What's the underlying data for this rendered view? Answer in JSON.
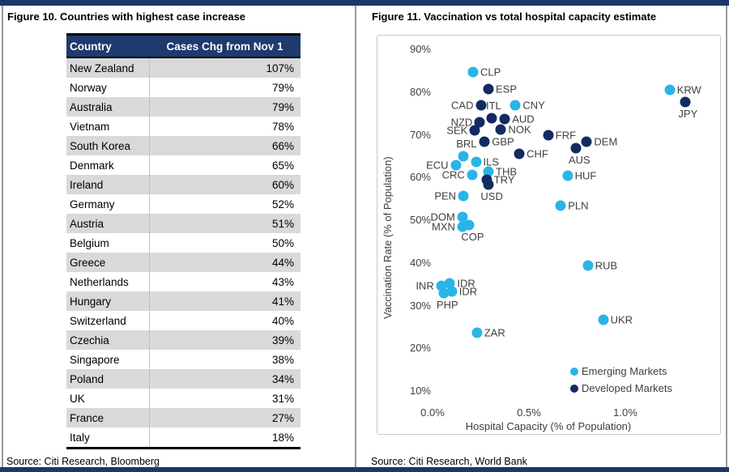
{
  "colors": {
    "bar_navy": "#1f3767",
    "table_header_navy": "#1e3a6e",
    "emerging": "#29b4e8",
    "developed": "#132a63",
    "row_alt_gray": "#d9d9d9"
  },
  "figure10": {
    "title": "Figure 10. Countries with highest case increase",
    "source": "Source: Citi Research, Bloomberg",
    "table": {
      "columns": [
        "Country",
        "Cases Chg from Nov 1"
      ],
      "rows": [
        [
          "New Zealand",
          "107%"
        ],
        [
          "Norway",
          "79%"
        ],
        [
          "Australia",
          "79%"
        ],
        [
          "Vietnam",
          "78%"
        ],
        [
          "South Korea",
          "66%"
        ],
        [
          "Denmark",
          "65%"
        ],
        [
          "Ireland",
          "60%"
        ],
        [
          "Germany",
          "52%"
        ],
        [
          "Austria",
          "51%"
        ],
        [
          "Belgium",
          "50%"
        ],
        [
          "Greece",
          "44%"
        ],
        [
          "Netherlands",
          "43%"
        ],
        [
          "Hungary",
          "41%"
        ],
        [
          "Switzerland",
          "40%"
        ],
        [
          "Czechia",
          "39%"
        ],
        [
          "Singapore",
          "38%"
        ],
        [
          "Poland",
          "34%"
        ],
        [
          "UK",
          "31%"
        ],
        [
          "France",
          "27%"
        ],
        [
          "Italy",
          "18%"
        ]
      ]
    }
  },
  "figure11": {
    "title": "Figure 11. Vaccination vs total hospital capacity estimate",
    "source": "Source: Citi Research, World Bank",
    "chart_data": {
      "type": "scatter",
      "xlabel": "Hospital Capacity (% of Population)",
      "ylabel": "Vaccination Rate (% of Population)",
      "x_ticks": [
        "0.0%",
        "0.5%",
        "1.0%"
      ],
      "y_ticks": [
        "90%",
        "80%",
        "70%",
        "60%",
        "50%",
        "40%",
        "30%",
        "20%",
        "10%"
      ],
      "xlim": [
        0.0,
        1.0
      ],
      "ylim": [
        10,
        90
      ],
      "grid": false,
      "legend_position": "lower right",
      "legend": [
        {
          "name": "Emerging Markets",
          "color": "#29b4e8"
        },
        {
          "name": "Developed Markets",
          "color": "#132a63"
        }
      ],
      "series": [
        {
          "name": "Emerging Markets",
          "color": "#29b4e8",
          "points": [
            {
              "label": "CLP",
              "x": 0.21,
              "y": 84.6,
              "side": "right"
            },
            {
              "label": "KRW",
              "x": 1.23,
              "y": 80.5,
              "side": "right"
            },
            {
              "label": "CNY",
              "x": 0.43,
              "y": 77.0,
              "side": "right"
            },
            {
              "label": "BRL",
              "x": 0.16,
              "y": 64.9,
              "side": "above"
            },
            {
              "label": "ECU",
              "x": 0.12,
              "y": 62.9,
              "side": "left"
            },
            {
              "label": "ILS",
              "x": 0.225,
              "y": 63.7,
              "side": "right"
            },
            {
              "label": "THB",
              "x": 0.29,
              "y": 61.3,
              "side": "right"
            },
            {
              "label": "CRC",
              "x": 0.205,
              "y": 60.7,
              "side": "left"
            },
            {
              "label": "PEN",
              "x": 0.16,
              "y": 55.6,
              "side": "left"
            },
            {
              "label": "HUF",
              "x": 0.7,
              "y": 60.4,
              "side": "right"
            },
            {
              "label": "PLN",
              "x": 0.665,
              "y": 53.5,
              "side": "right"
            },
            {
              "label": "DOM",
              "x": 0.155,
              "y": 50.8,
              "side": "left"
            },
            {
              "label": "MXN",
              "x": 0.155,
              "y": 48.4,
              "side": "left"
            },
            {
              "label": "COP",
              "x": 0.19,
              "y": 48.8,
              "side": "below"
            },
            {
              "label": "INR",
              "x": 0.045,
              "y": 34.6,
              "side": "left"
            },
            {
              "label": "IDR",
              "x": 0.09,
              "y": 35.3,
              "side": "right"
            },
            {
              "label": "IDR",
              "x": 0.1,
              "y": 33.4,
              "side": "right"
            },
            {
              "label": "PHP",
              "x": 0.06,
              "y": 33.0,
              "side": "below"
            },
            {
              "label": "RUB",
              "x": 0.805,
              "y": 39.3,
              "side": "right"
            },
            {
              "label": "UKR",
              "x": 0.885,
              "y": 26.6,
              "side": "right"
            },
            {
              "label": "ZAR",
              "x": 0.23,
              "y": 23.7,
              "side": "right"
            }
          ]
        },
        {
          "name": "Developed Markets",
          "color": "#132a63",
          "points": [
            {
              "label": "ESP",
              "x": 0.29,
              "y": 80.7,
              "side": "right"
            },
            {
              "label": "JPY",
              "x": 1.31,
              "y": 77.7,
              "side": "below"
            },
            {
              "label": "CAD",
              "x": 0.25,
              "y": 77.0,
              "side": "left"
            },
            {
              "label": "ITL",
              "x": 0.305,
              "y": 73.9,
              "side": "above"
            },
            {
              "label": "NZD",
              "x": 0.245,
              "y": 72.9,
              "side": "left"
            },
            {
              "label": "AUD",
              "x": 0.375,
              "y": 73.7,
              "side": "right"
            },
            {
              "label": "SEK",
              "x": 0.22,
              "y": 71.0,
              "side": "left"
            },
            {
              "label": "NOK",
              "x": 0.355,
              "y": 71.2,
              "side": "right"
            },
            {
              "label": "GBP",
              "x": 0.27,
              "y": 68.3,
              "side": "right"
            },
            {
              "label": "FRF",
              "x": 0.6,
              "y": 69.9,
              "side": "right"
            },
            {
              "label": "DEM",
              "x": 0.8,
              "y": 68.3,
              "side": "right"
            },
            {
              "label": "AUS",
              "x": 0.745,
              "y": 66.8,
              "side": "below"
            },
            {
              "label": "CHF",
              "x": 0.45,
              "y": 65.5,
              "side": "right"
            },
            {
              "label": "TRY",
              "x": 0.28,
              "y": 59.4,
              "side": "right"
            },
            {
              "label": "USD",
              "x": 0.29,
              "y": 58.3,
              "side": "below"
            }
          ]
        }
      ]
    }
  }
}
